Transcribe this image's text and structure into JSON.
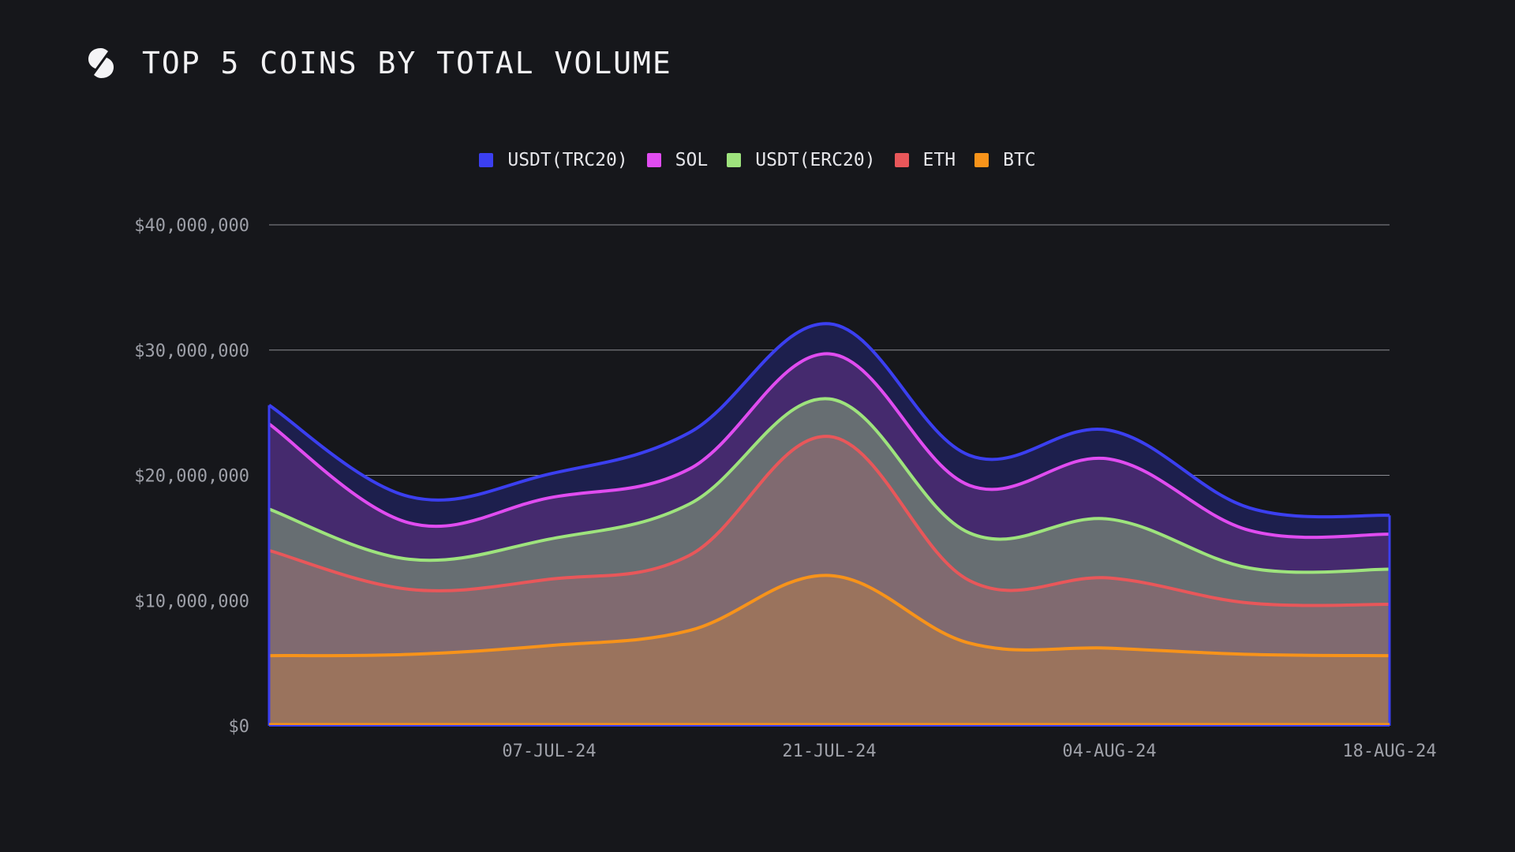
{
  "header": {
    "title": "TOP 5 COINS BY TOTAL VOLUME",
    "logo_icon": "s-logo-icon"
  },
  "chart_data": {
    "type": "area",
    "stacked": true,
    "title": "TOP 5 COINS BY TOTAL VOLUME",
    "xlabel": "",
    "ylabel": "",
    "ylim": [
      0,
      40000000
    ],
    "yticks": [
      0,
      10000000,
      20000000,
      30000000,
      40000000
    ],
    "ytick_labels": [
      "$0",
      "$10,000,000",
      "$20,000,000",
      "$30,000,000",
      "$40,000,000"
    ],
    "xtick_labels": [
      "07-JUL-24",
      "21-JUL-24",
      "04-AUG-24",
      "18-AUG-24"
    ],
    "xtick_positions": [
      2,
      4,
      6,
      8
    ],
    "x_dates": [
      "23-JUN-24",
      "30-JUN-24",
      "07-JUL-24",
      "14-JUL-24",
      "21-JUL-24",
      "28-JUL-24",
      "04-AUG-24",
      "11-AUG-24",
      "18-AUG-24"
    ],
    "grid": true,
    "legend": "top-center",
    "series": [
      {
        "name": "BTC",
        "color": "#f7931a",
        "values": [
          5600000,
          5700000,
          6400000,
          7600000,
          12000000,
          6600000,
          6200000,
          5700000,
          5600000
        ]
      },
      {
        "name": "ETH",
        "color": "#e8575a",
        "values": [
          8400000,
          5200000,
          5300000,
          6000000,
          11100000,
          5000000,
          5600000,
          4100000,
          4100000
        ]
      },
      {
        "name": "USDT(ERC20)",
        "color": "#9ee37d",
        "values": [
          3300000,
          2400000,
          3200000,
          4100000,
          3000000,
          3800000,
          4700000,
          2800000,
          2800000
        ]
      },
      {
        "name": "SOL",
        "color": "#e04cf0",
        "values": [
          6800000,
          2900000,
          3300000,
          2800000,
          3600000,
          3800000,
          4800000,
          3000000,
          2800000
        ]
      },
      {
        "name": "USDT(TRC20)",
        "color": "#3b3ff0",
        "values": [
          1500000,
          2100000,
          1900000,
          2900000,
          2400000,
          2400000,
          2300000,
          1800000,
          1500000
        ]
      }
    ],
    "legend_order": [
      "USDT(TRC20)",
      "SOL",
      "USDT(ERC20)",
      "ETH",
      "BTC"
    ]
  }
}
